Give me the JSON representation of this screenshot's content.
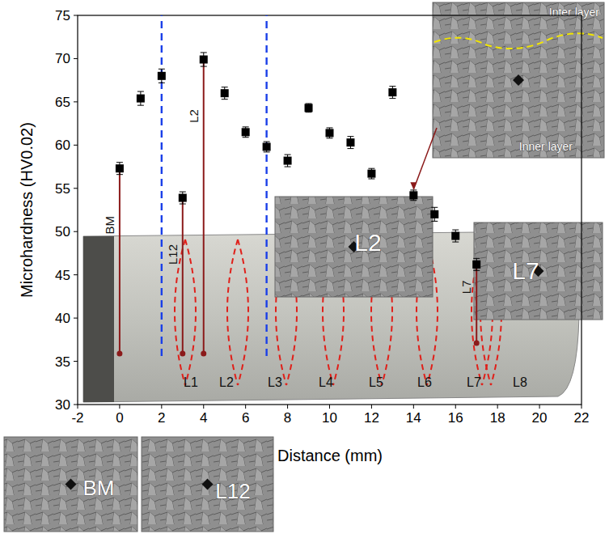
{
  "chart_data": {
    "type": "scatter",
    "x_label": "Distance (mm)",
    "y_label": "Microhardness (HV0.02)",
    "x": [
      0,
      1,
      2,
      3,
      4,
      5,
      6,
      7,
      8,
      9,
      10,
      11,
      12,
      13,
      14,
      15,
      16,
      17
    ],
    "values": [
      57.3,
      65.4,
      68.0,
      53.9,
      69.9,
      66.0,
      61.5,
      59.8,
      58.2,
      64.3,
      61.4,
      60.3,
      56.7,
      66.1,
      54.2,
      52.0,
      49.5,
      46.2
    ],
    "errors": [
      0.7,
      0.8,
      0.8,
      0.7,
      0.8,
      0.7,
      0.6,
      0.6,
      0.7,
      0.5,
      0.6,
      0.7,
      0.6,
      0.7,
      0.6,
      0.8,
      0.7,
      0.7
    ],
    "color": "#000000",
    "marker": "square",
    "xlim": [
      -2,
      22
    ],
    "ylim": [
      30,
      75
    ],
    "xticks": [
      -2,
      0,
      2,
      4,
      6,
      8,
      10,
      12,
      14,
      16,
      18,
      20,
      22
    ],
    "yticks": [
      30,
      35,
      40,
      45,
      50,
      55,
      60,
      65,
      70,
      75
    ],
    "reference_lines": [
      2,
      7
    ],
    "annotations": [
      {
        "x": 0,
        "label": "BM"
      },
      {
        "x": 3,
        "label": "L12"
      },
      {
        "x": 4,
        "label": "L2"
      },
      {
        "x": 17,
        "label": "L7"
      }
    ],
    "zone_labels": [
      "L1",
      "L2",
      "L3",
      "L4",
      "L5",
      "L6",
      "L7",
      "L8"
    ],
    "micrographs": [
      {
        "x": 14,
        "labels": [
          "Inter layer",
          "Inner layer"
        ]
      },
      {
        "labels": [
          "L2"
        ]
      },
      {
        "labels": [
          "L7"
        ]
      },
      {
        "labels": [
          "BM"
        ]
      },
      {
        "labels": [
          "L12"
        ]
      }
    ]
  }
}
